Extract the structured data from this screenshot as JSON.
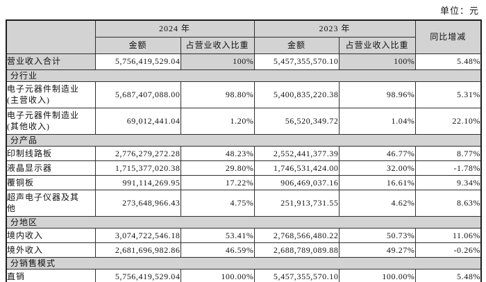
{
  "page": {
    "unit_label": "单位：元"
  },
  "table": {
    "header": {
      "y2024": "2024 年",
      "y2023": "2023 年",
      "yoy": "同比增减"
    },
    "columns": {
      "amount": "金额",
      "ratio": "占营业收入比重"
    },
    "rows": [
      {
        "type": "data",
        "shaded": true,
        "label": "营业收入合计",
        "a2024": "5,756,419,529.04",
        "r2024": "100%",
        "a2023": "5,457,355,570.10",
        "r2023": "100%",
        "yoy": "5.48%"
      },
      {
        "type": "section",
        "label": "分行业"
      },
      {
        "type": "data",
        "label": "电子元器件制造业\n(主营收入)",
        "a2024": "5,687,407,088.00",
        "r2024": "98.80%",
        "a2023": "5,400,835,220.38",
        "r2023": "98.96%",
        "yoy": "5.31%"
      },
      {
        "type": "data",
        "label": "电子元器件制造业\n(其他收入)",
        "a2024": "69,012,441.04",
        "r2024": "1.20%",
        "a2023": "56,520,349.72",
        "r2023": "1.04%",
        "yoy": "22.10%"
      },
      {
        "type": "section",
        "label": "分产品"
      },
      {
        "type": "data",
        "label": "印制线路板",
        "a2024": "2,776,279,272.28",
        "r2024": "48.23%",
        "a2023": "2,552,441,377.39",
        "r2023": "46.77%",
        "yoy": "8.77%"
      },
      {
        "type": "data",
        "label": "液晶显示器",
        "a2024": "1,715,377,020.38",
        "r2024": "29.80%",
        "a2023": "1,746,531,424.00",
        "r2023": "32.00%",
        "yoy": "-1.78%"
      },
      {
        "type": "data",
        "label": "覆铜板",
        "a2024": "991,114,269.95",
        "r2024": "17.22%",
        "a2023": "906,469,037.16",
        "r2023": "16.61%",
        "yoy": "9.34%"
      },
      {
        "type": "data",
        "label": "超声电子仪器及其\n他",
        "a2024": "273,648,966.43",
        "r2024": "4.75%",
        "a2023": "251,913,731.55",
        "r2023": "4.62%",
        "yoy": "8.63%"
      },
      {
        "type": "section",
        "label": "分地区"
      },
      {
        "type": "data",
        "label": "境内收入",
        "a2024": "3,074,722,546.18",
        "r2024": "53.41%",
        "a2023": "2,768,566,480.22",
        "r2023": "50.73%",
        "yoy": "11.06%"
      },
      {
        "type": "data",
        "label": "境外收入",
        "a2024": "2,681,696,982.86",
        "r2024": "46.59%",
        "a2023": "2,688,789,089.88",
        "r2023": "49.27%",
        "yoy": "-0.26%"
      },
      {
        "type": "section",
        "label": "分销售模式"
      },
      {
        "type": "data",
        "label": "直销",
        "a2024": "5,756,419,529.04",
        "r2024": "100.00%",
        "a2023": "5,457,355,570.10",
        "r2023": "100.00%",
        "yoy": "5.48%"
      }
    ]
  }
}
